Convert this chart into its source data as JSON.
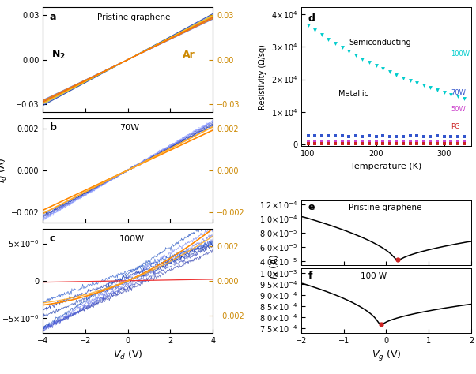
{
  "panel_a_title": "Pristine graphene",
  "panel_b_title": "70W",
  "panel_c_title": "100W",
  "panel_d_xlabel": "Temperature (K)",
  "panel_d_ylabel": "Resistivity (Ω/sq)",
  "panel_d_label_100w": "100W",
  "panel_d_label_70w": "70W",
  "panel_d_label_50w": "50W",
  "panel_d_label_pg": "PG",
  "panel_d_semiconducting": "Semiconducting",
  "panel_d_metallic": "Metallic",
  "panel_e_title": "Pristine graphene",
  "panel_f_title": "100 W",
  "color_100w": "#00cccc",
  "color_70w": "#3355cc",
  "color_50w": "#cc44cc",
  "color_pg": "#cc2222",
  "n2_cols_a": [
    "#3333aa",
    "#4444bb",
    "#5566cc",
    "#6677dd",
    "#7788ee",
    "#2244aa"
  ],
  "ar_cols_a": [
    "#ff8800",
    "#ffaa00",
    "#ffcc00",
    "#ff6600"
  ],
  "n2_cols_b": [
    "#2233aa",
    "#3344bb",
    "#4455cc",
    "#5566dd",
    "#6677ee",
    "#7788ff",
    "#1133aa",
    "#8899ff"
  ],
  "ar_cols_b": [
    "#ff8800",
    "#ffaa22"
  ],
  "n2_cols_c": [
    "#2233aa",
    "#3344bb",
    "#4455cc",
    "#5566dd",
    "#1133aa",
    "#6677ee",
    "#0022aa",
    "#1144bb",
    "#2255cc"
  ],
  "ar_cols_c": [
    "#ff8800",
    "#ffaa22"
  ]
}
